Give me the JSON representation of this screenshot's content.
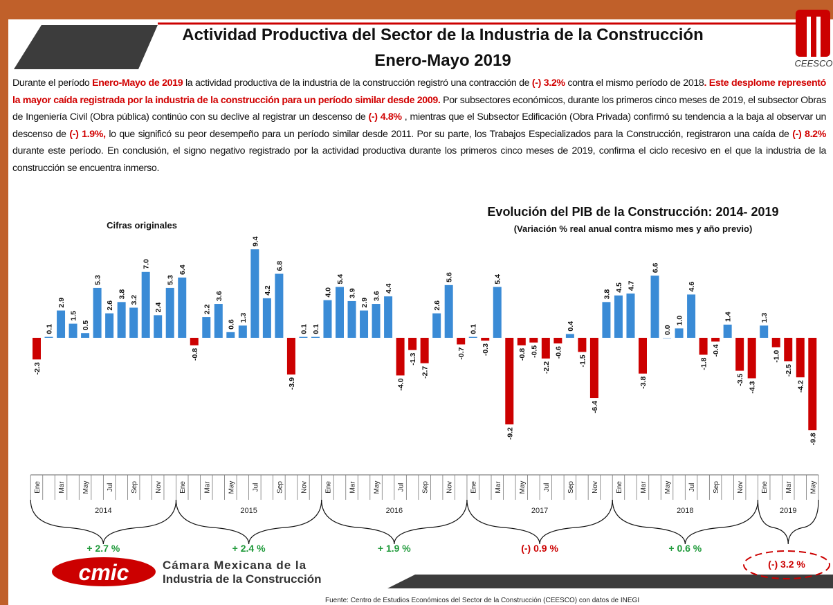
{
  "header": {
    "title_line1": "Actividad Productiva del Sector de la Industria de la Construcción",
    "title_line2": "Enero-Mayo 2019",
    "logo_text": "CEESCO"
  },
  "body": {
    "paragraph": [
      "Durante el período ",
      "Enero-Mayo de 2019",
      " la actividad productiva de la industria de la construcción registró una contracción de ",
      "(-) 3.2%",
      " contra el mismo período de 2018",
      ". Este desplome representó la mayor caída registrada por la industria de la construcción para un período similar desde 2009.",
      " Por subsectores económicos, durante los primeros cinco meses de 2019, el subsector Obras de Ingeniería Civil (Obra pública) continúo con su declive al registrar un descenso de ",
      "(-) 4.8%",
      " , mientras que el Subsector Edificación (Obra Privada) confirmó su tendencia a la baja al observar un descenso de ",
      "(-) 1.9%,",
      " lo que significó su peor desempeño para un período similar desde 2011. Por su parte, los Trabajos Especializados para la Construcción, registraron una caída de ",
      "(-) 8.2%",
      " durante este período. En conclusión, el signo negativo registrado por la actividad productiva durante los primeros cinco meses de 2019, confirma el ciclo recesivo en el que la industria de la construcción se encuentra inmerso."
    ]
  },
  "chart_data": {
    "type": "bar",
    "title": "Evolución del PIB de la Construcción: 2014- 2019",
    "subtitle": "(Variación % real anual contra mismo mes y año previo)",
    "note": "Cifras originales",
    "colors": {
      "positive": "#3a8bd6",
      "negative": "#cc0000"
    },
    "categories": [
      "Ene",
      null,
      "Mar",
      null,
      "May",
      null,
      "Jul",
      null,
      "Sep",
      null,
      "Nov",
      null,
      "Ene",
      null,
      "Mar",
      null,
      "May",
      null,
      "Jul",
      null,
      "Sep",
      null,
      "Nov",
      null,
      "Ene",
      null,
      "Mar",
      null,
      "May",
      null,
      "Jul",
      null,
      "Sep",
      null,
      "Nov",
      null,
      "Ene",
      null,
      "Mar",
      null,
      "May",
      null,
      "Jul",
      null,
      "Sep",
      null,
      "Nov",
      null,
      "Ene",
      null,
      "Mar",
      null,
      "May",
      null,
      "Jul",
      null,
      "Sep",
      null,
      "Nov",
      null,
      "Ene",
      null,
      "Mar",
      null,
      "May"
    ],
    "values": [
      -2.3,
      0.1,
      2.9,
      1.5,
      0.5,
      5.3,
      2.6,
      3.8,
      3.2,
      7.0,
      2.4,
      5.3,
      6.4,
      -0.8,
      2.2,
      3.6,
      0.6,
      1.3,
      9.4,
      4.2,
      6.8,
      -3.9,
      0.1,
      0.1,
      4.0,
      5.4,
      3.9,
      2.9,
      3.6,
      4.4,
      -4.0,
      -1.3,
      -2.7,
      2.6,
      5.6,
      -0.7,
      0.1,
      -0.3,
      5.4,
      -9.2,
      -0.8,
      -0.5,
      -2.2,
      -0.6,
      0.4,
      -1.5,
      -6.4,
      3.8,
      4.5,
      4.7,
      -3.8,
      6.6,
      0.0,
      1.0,
      4.6,
      -1.8,
      -0.4,
      1.4,
      -3.5,
      -4.3,
      1.3,
      -1.0,
      -2.5,
      -4.2,
      -9.8
    ],
    "value_labels": [
      "-2.3",
      "0.1",
      "2.9",
      "1.5",
      "0.5",
      "5.3",
      "2.6",
      "3.8",
      "3.2",
      "7.0",
      "2.4",
      "5.3",
      "6.4",
      "-0.8",
      "2.2",
      "3.6",
      "0.6",
      "1.3",
      "9.4",
      "4.2",
      "6.8",
      "-3.9",
      "0.1",
      "0.1",
      "4.0",
      "5.4",
      "3.9",
      "2.9",
      "3.6",
      "4.4",
      "-4.0",
      "-1.3",
      "-2.7",
      "2.6",
      "5.6",
      "-0.7",
      "0.1",
      "-0.3",
      "5.4",
      "-9.2",
      "-0.8",
      "-0.5",
      "-2.2",
      "-0.6",
      "0.4",
      "-1.5",
      "-6.4",
      "3.8",
      "4.5",
      "4.7",
      "-3.8",
      "6.6",
      "0.0",
      "1.0",
      "4.6",
      "-1.8",
      "-0.4",
      "1.4",
      "-3.5",
      "-4.3",
      "1.3",
      "-1.0",
      "-2.5",
      "-4.2",
      "-9.8"
    ],
    "years": [
      {
        "label": "2014",
        "months": 12,
        "change": "+ 2.7 %"
      },
      {
        "label": "2015",
        "months": 12,
        "change": "+ 2.4 %"
      },
      {
        "label": "2016",
        "months": 12,
        "change": "+ 1.9 %"
      },
      {
        "label": "2017",
        "months": 12,
        "change": "(-) 0.9 %"
      },
      {
        "label": "2018",
        "months": 12,
        "change": "+ 0.6 %"
      },
      {
        "label": "2019",
        "months": 5,
        "change": "(-) 3.2 %"
      }
    ]
  },
  "footer": {
    "logo_mark": "cmic",
    "logo_line1": "Cámara Mexicana de la",
    "logo_line2": "Industria de la Construcción",
    "source": "Fuente: Centro de Estudios Económicos del Sector de la Construcción (CEESCO) con datos de INEGI"
  }
}
